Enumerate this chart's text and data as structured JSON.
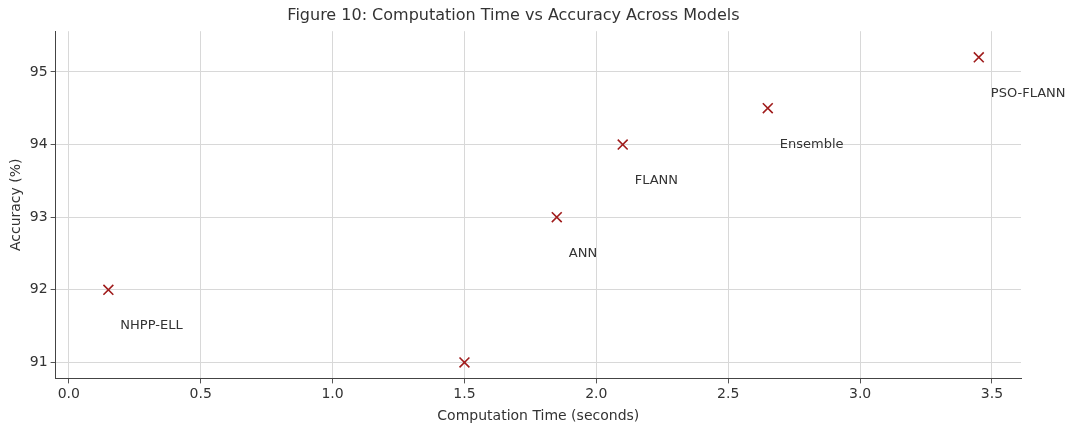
{
  "chart_data": {
    "type": "scatter",
    "title": "Figure 10: Computation Time vs Accuracy Across Models",
    "xlabel": "Computation Time (seconds)",
    "ylabel": "Accuracy (%)",
    "x": [
      0.15,
      1.5,
      1.85,
      2.1,
      2.65,
      3.45
    ],
    "series": [
      {
        "color": "#a01c1c",
        "values": [
          92,
          91,
          93,
          94,
          94.5,
          95.2
        ]
      }
    ],
    "annotations": [
      {
        "text": "NHPP-ELL",
        "x": 0.15,
        "y": 92
      },
      {
        "text": "ANN",
        "x": 1.85,
        "y": 93
      },
      {
        "text": "FLANN",
        "x": 2.1,
        "y": 94
      },
      {
        "text": "Ensemble",
        "x": 2.65,
        "y": 94.5
      },
      {
        "text": "PSO-FLANN",
        "x": 3.45,
        "y": 95.2
      }
    ],
    "xlim": [
      -0.05,
      3.61
    ],
    "xticks": [
      {
        "value": 0,
        "label": "0.0"
      },
      {
        "value": 0.5,
        "label": "0.5"
      },
      {
        "value": 1,
        "label": "1.0"
      },
      {
        "value": 1.5,
        "label": "1.5"
      },
      {
        "value": 2,
        "label": "2.0"
      },
      {
        "value": 2.5,
        "label": "2.5"
      },
      {
        "value": 3,
        "label": "3.0"
      },
      {
        "value": 3.5,
        "label": "3.5"
      }
    ],
    "ylim": [
      90.78,
      95.56
    ],
    "yticks": [
      91,
      92,
      93,
      94,
      95
    ],
    "grid": true,
    "marker": "cross",
    "legend": false
  }
}
